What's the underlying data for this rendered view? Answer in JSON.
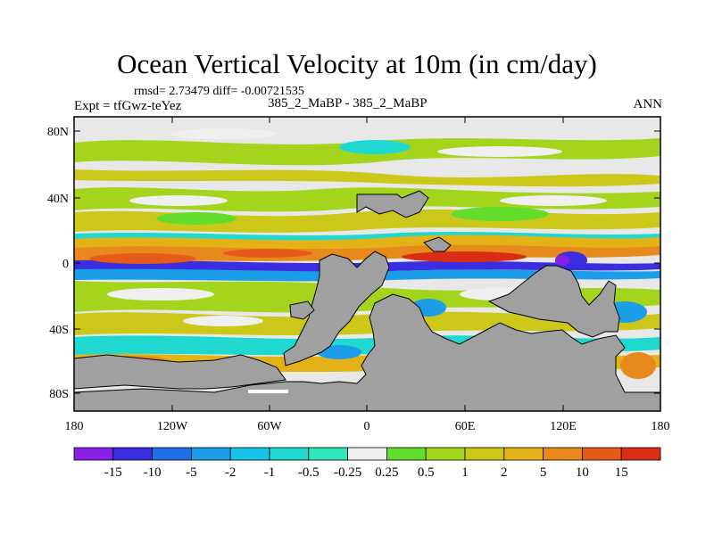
{
  "title": "Ocean Vertical Velocity at 10m (in cm/day)",
  "stats_line": "rmsd= 2.73479 diff= -0.00721535",
  "experiment": "Expt = tfGwz-teYez",
  "case_label": "385_2_MaBP - 385_2_MaBP",
  "season": "ANN",
  "map": {
    "lat_ticks": [
      "80N",
      "40N",
      "0",
      "40S",
      "80S"
    ],
    "lon_ticks": [
      "180",
      "120W",
      "60W",
      "0",
      "60E",
      "120E",
      "180"
    ]
  },
  "colorbar": {
    "labels": [
      "-15",
      "-10",
      "-5",
      "-2",
      "-1",
      "-0.5",
      "-0.25",
      "0.25",
      "0.5",
      "1",
      "2",
      "5",
      "10",
      "15"
    ],
    "colors": [
      "#8a1fe6",
      "#3b2ee0",
      "#1f6fe6",
      "#1c9de8",
      "#17c3e8",
      "#1fd8cf",
      "#2ee6b8",
      "#f0f0f0",
      "#63dd2c",
      "#a4d41c",
      "#cbc81a",
      "#e3b217",
      "#e8891c",
      "#e65a1a",
      "#d92e14"
    ]
  },
  "legend_colors": {
    "land": "#a0a0a0",
    "neutral": "#e8e8e8",
    "frame": "#000000"
  }
}
